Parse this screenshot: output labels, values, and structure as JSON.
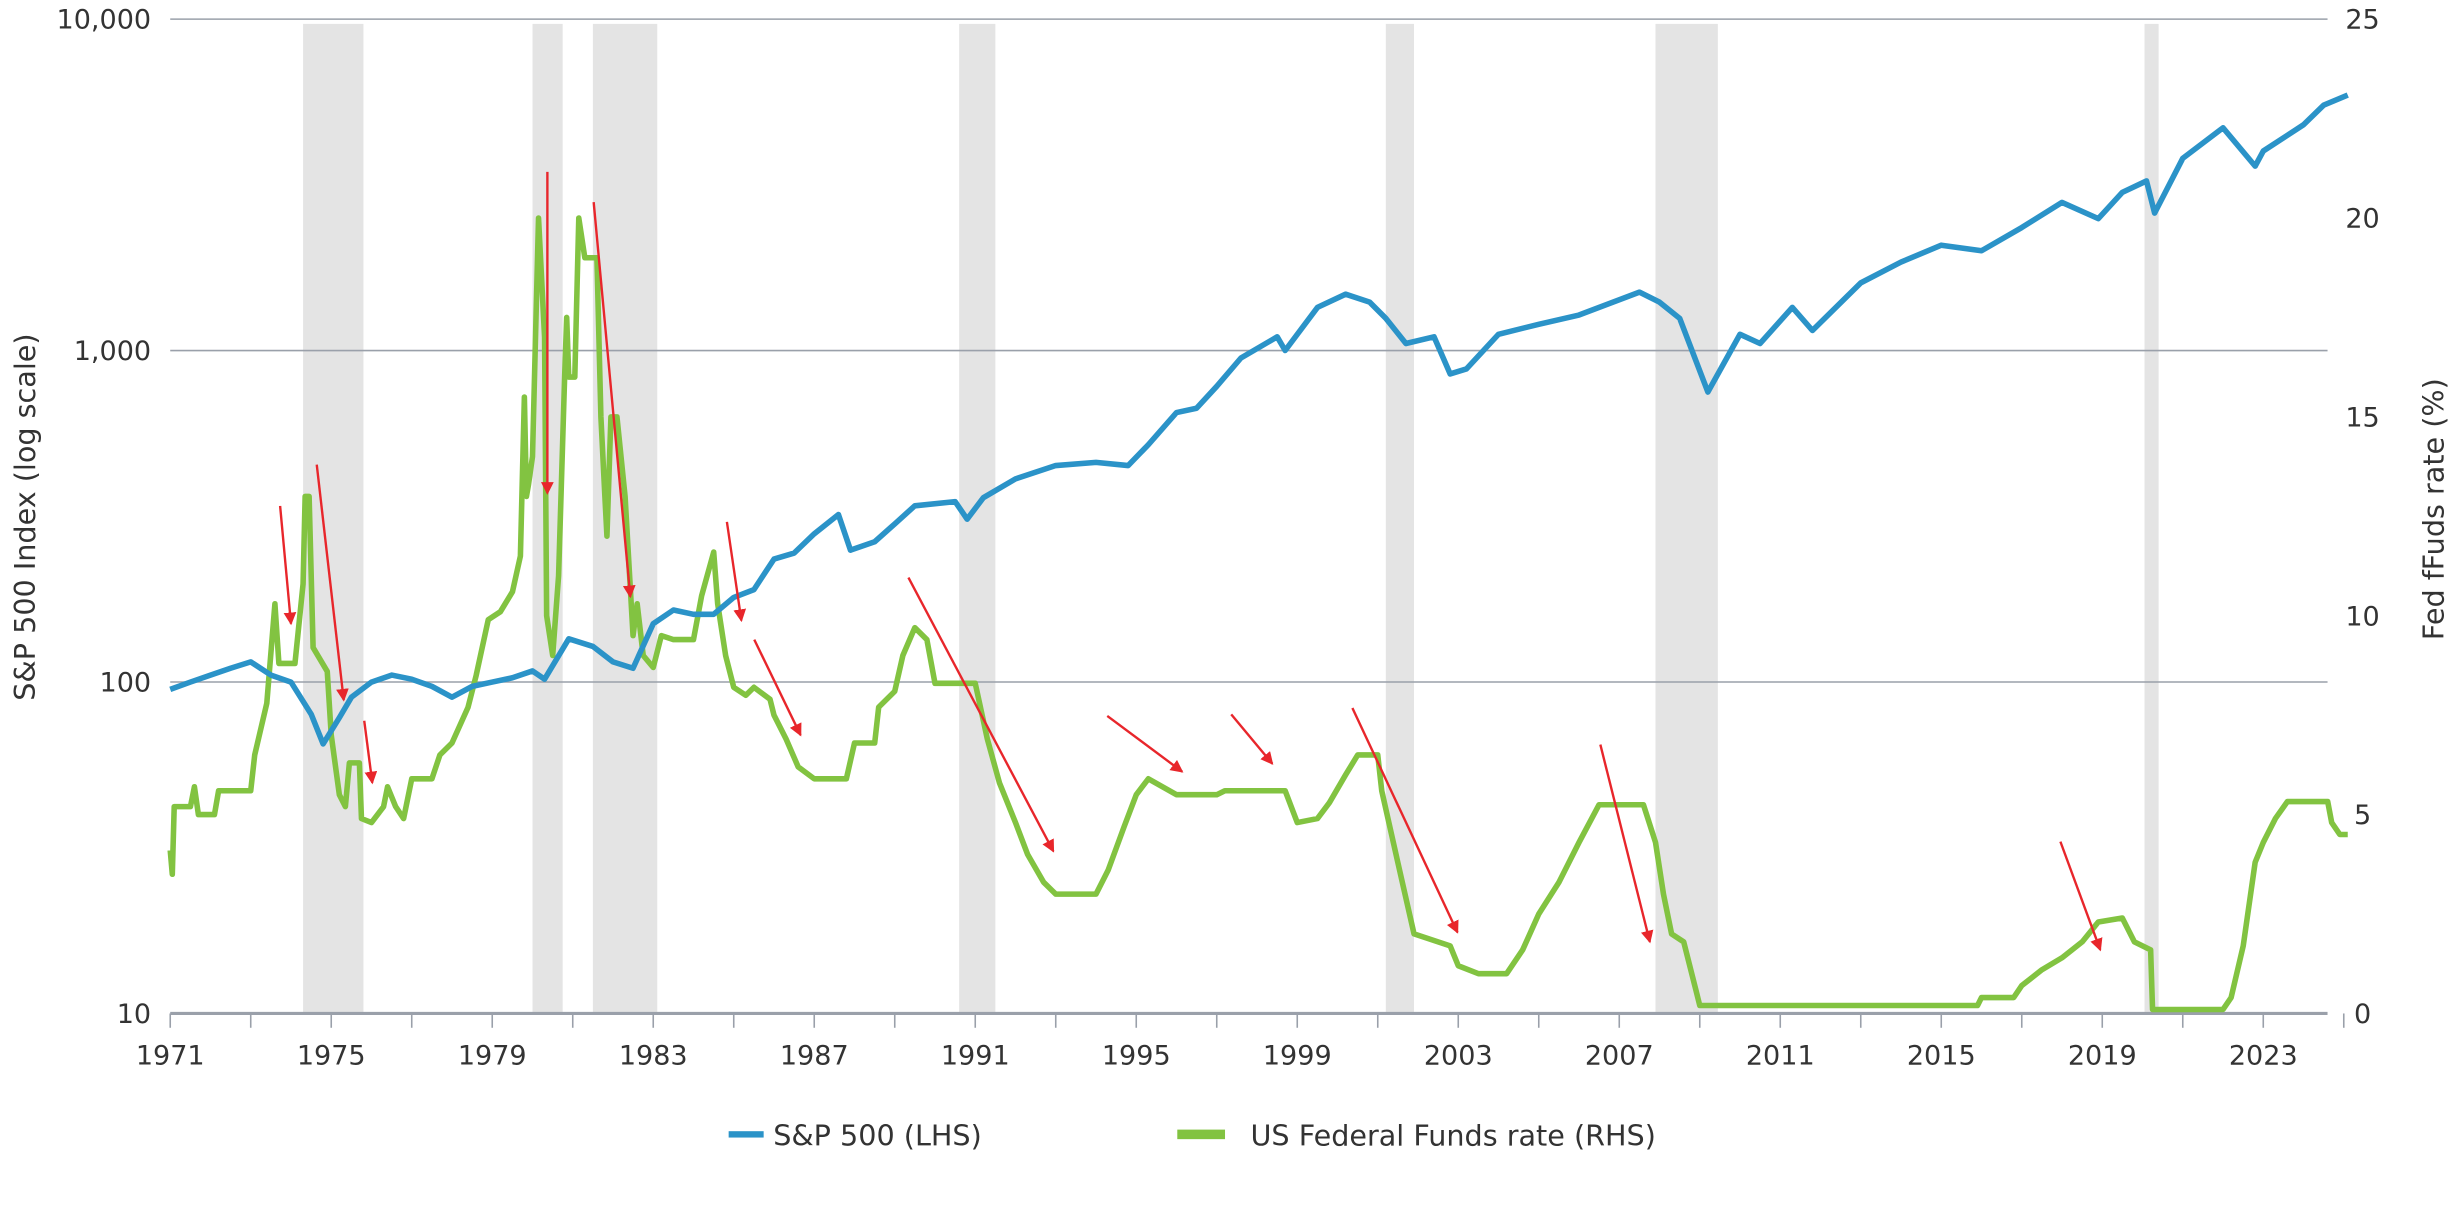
{
  "chart_data": {
    "type": "line",
    "title": "",
    "xlabel": "",
    "ylabel_left": "S&P 500 Index (log scale)",
    "ylabel_right": "Fed fFuds rate (%)",
    "x_range": [
      1971,
      2025.1
    ],
    "x_ticks": [
      "1971",
      "1975",
      "1979",
      "1983",
      "1987",
      "1991",
      "1995",
      "1999",
      "2003",
      "2007",
      "2011",
      "2015",
      "2019",
      "2023"
    ],
    "y_left": {
      "scale": "log",
      "range": [
        10,
        10000
      ],
      "ticks": [
        "10",
        "100",
        "1,000",
        "10,000"
      ],
      "tick_values": [
        10,
        100,
        1000,
        10000
      ]
    },
    "y_right": {
      "range": [
        0,
        25
      ],
      "ticks": [
        "0",
        "5",
        "10",
        "15",
        "20",
        "25"
      ],
      "tick_values": [
        0,
        5,
        10,
        15,
        20,
        25
      ]
    },
    "grid": "horizontal",
    "legend_position": "bottom",
    "colors": {
      "sp500": "#2b93c8",
      "fedfunds": "#82c341",
      "recession": "#e4e4e4",
      "arrow": "#e8262b",
      "grid": "#9aa0aa"
    },
    "series": [
      {
        "name": "S&P 500 (LHS)",
        "axis": "left",
        "points": [
          [
            1971,
            95
          ],
          [
            1971.5,
            100
          ],
          [
            1972,
            105
          ],
          [
            1972.5,
            110
          ],
          [
            1973,
            115
          ],
          [
            1973.5,
            105
          ],
          [
            1974,
            100
          ],
          [
            1974.5,
            80
          ],
          [
            1974.8,
            65
          ],
          [
            1975.2,
            78
          ],
          [
            1975.5,
            90
          ],
          [
            1976,
            100
          ],
          [
            1976.5,
            105
          ],
          [
            1977,
            102
          ],
          [
            1977.5,
            97
          ],
          [
            1978,
            90
          ],
          [
            1978.5,
            97
          ],
          [
            1979,
            100
          ],
          [
            1979.5,
            103
          ],
          [
            1980,
            108
          ],
          [
            1980.3,
            102
          ],
          [
            1980.9,
            135
          ],
          [
            1981.5,
            128
          ],
          [
            1982,
            115
          ],
          [
            1982.5,
            110
          ],
          [
            1983,
            150
          ],
          [
            1983.5,
            165
          ],
          [
            1984,
            160
          ],
          [
            1984.5,
            160
          ],
          [
            1985,
            180
          ],
          [
            1985.5,
            190
          ],
          [
            1986,
            235
          ],
          [
            1986.5,
            245
          ],
          [
            1987,
            280
          ],
          [
            1987.6,
            320
          ],
          [
            1987.9,
            250
          ],
          [
            1988.5,
            265
          ],
          [
            1989,
            300
          ],
          [
            1989.5,
            340
          ],
          [
            1990.5,
            350
          ],
          [
            1990.8,
            310
          ],
          [
            1991.2,
            360
          ],
          [
            1992,
            410
          ],
          [
            1993,
            450
          ],
          [
            1994,
            460
          ],
          [
            1994.8,
            450
          ],
          [
            1995.3,
            520
          ],
          [
            1996,
            650
          ],
          [
            1996.5,
            670
          ],
          [
            1997,
            780
          ],
          [
            1997.6,
            950
          ],
          [
            1998.5,
            1100
          ],
          [
            1998.7,
            1000
          ],
          [
            1999.5,
            1350
          ],
          [
            2000.2,
            1480
          ],
          [
            2000.8,
            1400
          ],
          [
            2001.2,
            1250
          ],
          [
            2001.7,
            1050
          ],
          [
            2002.4,
            1100
          ],
          [
            2002.8,
            850
          ],
          [
            2003.2,
            880
          ],
          [
            2004,
            1120
          ],
          [
            2005,
            1200
          ],
          [
            2006,
            1280
          ],
          [
            2007.5,
            1500
          ],
          [
            2008,
            1400
          ],
          [
            2008.5,
            1250
          ],
          [
            2009.2,
            750
          ],
          [
            2010,
            1120
          ],
          [
            2010.5,
            1050
          ],
          [
            2011.3,
            1350
          ],
          [
            2011.8,
            1150
          ],
          [
            2013,
            1600
          ],
          [
            2014,
            1850
          ],
          [
            2015,
            2080
          ],
          [
            2016,
            2000
          ],
          [
            2017,
            2350
          ],
          [
            2018,
            2800
          ],
          [
            2018.9,
            2500
          ],
          [
            2019.5,
            3000
          ],
          [
            2020.1,
            3250
          ],
          [
            2020.3,
            2600
          ],
          [
            2021,
            3800
          ],
          [
            2022,
            4700
          ],
          [
            2022.8,
            3600
          ],
          [
            2023,
            4000
          ],
          [
            2024,
            4800
          ],
          [
            2024.5,
            5500
          ],
          [
            2025.1,
            5900
          ]
        ]
      },
      {
        "name": "US Federal Funds rate (RHS)",
        "axis": "right",
        "points": [
          [
            1971,
            4.1
          ],
          [
            1971.05,
            3.5
          ],
          [
            1971.1,
            5.2
          ],
          [
            1971.5,
            5.2
          ],
          [
            1971.6,
            5.7
          ],
          [
            1971.7,
            5
          ],
          [
            1972.1,
            5
          ],
          [
            1972.2,
            5.6
          ],
          [
            1973,
            5.6
          ],
          [
            1973.1,
            6.5
          ],
          [
            1973.4,
            7.8
          ],
          [
            1973.6,
            10.3
          ],
          [
            1973.7,
            8.8
          ],
          [
            1974.1,
            8.8
          ],
          [
            1974.3,
            10.8
          ],
          [
            1974.35,
            13
          ],
          [
            1974.45,
            13
          ],
          [
            1974.55,
            9.2
          ],
          [
            1974.9,
            8.6
          ],
          [
            1975,
            7
          ],
          [
            1975.2,
            5.5
          ],
          [
            1975.35,
            5.2
          ],
          [
            1975.45,
            6.3
          ],
          [
            1975.7,
            6.3
          ],
          [
            1975.75,
            4.9
          ],
          [
            1976,
            4.8
          ],
          [
            1976.3,
            5.2
          ],
          [
            1976.4,
            5.7
          ],
          [
            1976.6,
            5.2
          ],
          [
            1976.8,
            4.9
          ],
          [
            1977,
            5.9
          ],
          [
            1977.5,
            5.9
          ],
          [
            1977.7,
            6.5
          ],
          [
            1978,
            6.8
          ],
          [
            1978.4,
            7.7
          ],
          [
            1978.6,
            8.5
          ],
          [
            1978.9,
            9.9
          ],
          [
            1979.2,
            10.1
          ],
          [
            1979.5,
            10.6
          ],
          [
            1979.7,
            11.5
          ],
          [
            1979.8,
            15.5
          ],
          [
            1979.85,
            13
          ],
          [
            1979.9,
            13.3
          ],
          [
            1980,
            14
          ],
          [
            1980.15,
            20
          ],
          [
            1980.3,
            17
          ],
          [
            1980.35,
            10
          ],
          [
            1980.5,
            9
          ],
          [
            1980.65,
            11
          ],
          [
            1980.8,
            16
          ],
          [
            1980.85,
            17.5
          ],
          [
            1980.9,
            16
          ],
          [
            1981.05,
            16
          ],
          [
            1981.15,
            20
          ],
          [
            1981.3,
            19
          ],
          [
            1981.6,
            19
          ],
          [
            1981.7,
            15
          ],
          [
            1981.8,
            13
          ],
          [
            1981.85,
            12
          ],
          [
            1981.95,
            15
          ],
          [
            1982.1,
            15
          ],
          [
            1982.3,
            13
          ],
          [
            1982.5,
            9.5
          ],
          [
            1982.6,
            10.3
          ],
          [
            1982.75,
            9
          ],
          [
            1983,
            8.7
          ],
          [
            1983.2,
            9.5
          ],
          [
            1983.5,
            9.4
          ],
          [
            1984,
            9.4
          ],
          [
            1984.2,
            10.5
          ],
          [
            1984.5,
            11.6
          ],
          [
            1984.6,
            10.3
          ],
          [
            1984.8,
            9
          ],
          [
            1985,
            8.2
          ],
          [
            1985.3,
            8
          ],
          [
            1985.5,
            8.2
          ],
          [
            1985.9,
            7.9
          ],
          [
            1986,
            7.5
          ],
          [
            1986.3,
            6.9
          ],
          [
            1986.6,
            6.2
          ],
          [
            1987,
            5.9
          ],
          [
            1987.8,
            5.9
          ],
          [
            1988,
            6.8
          ],
          [
            1988.5,
            6.8
          ],
          [
            1988.6,
            7.7
          ],
          [
            1989,
            8.1
          ],
          [
            1989.2,
            9
          ],
          [
            1989.5,
            9.7
          ],
          [
            1989.8,
            9.4
          ],
          [
            1990,
            8.3
          ],
          [
            1991,
            8.3
          ],
          [
            1991.3,
            6.9
          ],
          [
            1991.6,
            5.8
          ],
          [
            1992,
            4.8
          ],
          [
            1992.3,
            4
          ],
          [
            1992.7,
            3.3
          ],
          [
            1993,
            3
          ],
          [
            1994,
            3
          ],
          [
            1994.3,
            3.6
          ],
          [
            1994.7,
            4.7
          ],
          [
            1995,
            5.5
          ],
          [
            1995.3,
            5.9
          ],
          [
            1996,
            5.5
          ],
          [
            1997,
            5.5
          ],
          [
            1997.2,
            5.6
          ],
          [
            1998.7,
            5.6
          ],
          [
            1999,
            4.8
          ],
          [
            1999.5,
            4.9
          ],
          [
            1999.8,
            5.3
          ],
          [
            2000.2,
            6
          ],
          [
            2000.5,
            6.5
          ],
          [
            2001,
            6.5
          ],
          [
            2001.1,
            5.6
          ],
          [
            2001.5,
            3.8
          ],
          [
            2001.9,
            2
          ],
          [
            2002.8,
            1.7
          ],
          [
            2003,
            1.2
          ],
          [
            2003.5,
            1
          ],
          [
            2004.2,
            1
          ],
          [
            2004.6,
            1.6
          ],
          [
            2005,
            2.5
          ],
          [
            2005.5,
            3.3
          ],
          [
            2006,
            4.3
          ],
          [
            2006.5,
            5.25
          ],
          [
            2007.6,
            5.25
          ],
          [
            2007.9,
            4.3
          ],
          [
            2008.1,
            3
          ],
          [
            2008.3,
            2
          ],
          [
            2008.6,
            1.8
          ],
          [
            2008.9,
            0.6
          ],
          [
            2009,
            0.2
          ],
          [
            2015.9,
            0.2
          ],
          [
            2016,
            0.4
          ],
          [
            2016.8,
            0.4
          ],
          [
            2017,
            0.7
          ],
          [
            2017.5,
            1.1
          ],
          [
            2018,
            1.4
          ],
          [
            2018.5,
            1.8
          ],
          [
            2018.9,
            2.3
          ],
          [
            2019.5,
            2.4
          ],
          [
            2019.8,
            1.8
          ],
          [
            2020.2,
            1.6
          ],
          [
            2020.25,
            0.1
          ],
          [
            2022,
            0.1
          ],
          [
            2022.2,
            0.4
          ],
          [
            2022.5,
            1.7
          ],
          [
            2022.8,
            3.8
          ],
          [
            2023,
            4.3
          ],
          [
            2023.3,
            4.9
          ],
          [
            2023.6,
            5.33
          ],
          [
            2024.6,
            5.33
          ],
          [
            2024.7,
            4.8
          ],
          [
            2024.9,
            4.5
          ],
          [
            2025.1,
            4.5
          ]
        ]
      }
    ],
    "recessions": [
      [
        1974.3,
        1975.8
      ],
      [
        1980.0,
        1980.75
      ],
      [
        1981.5,
        1983.1
      ],
      [
        1990.6,
        1991.5
      ],
      [
        2001.2,
        2001.9
      ],
      [
        2007.9,
        2009.45
      ],
      [
        2020.05,
        2020.4
      ]
    ],
    "annotations": {
      "type": "arrows",
      "units": "[year, rate %] to [year, rate %]",
      "arrows": [
        [
          [
            1973.73,
            12.76
          ],
          [
            1974.0,
            9.8
          ]
        ],
        [
          [
            1974.64,
            13.8
          ],
          [
            1975.31,
            7.88
          ]
        ],
        [
          [
            1975.82,
            7.36
          ],
          [
            1976.02,
            5.8
          ]
        ],
        [
          [
            1980.37,
            21.16
          ],
          [
            1980.37,
            13.08
          ]
        ],
        [
          [
            1981.52,
            20.4
          ],
          [
            1982.43,
            10.48
          ]
        ],
        [
          [
            1984.83,
            12.36
          ],
          [
            1985.19,
            9.88
          ]
        ],
        [
          [
            1985.51,
            9.4
          ],
          [
            1986.66,
            7.0
          ]
        ],
        [
          [
            1989.34,
            10.96
          ],
          [
            1992.94,
            4.08
          ]
        ],
        [
          [
            1994.28,
            7.48
          ],
          [
            1996.14,
            6.08
          ]
        ],
        [
          [
            1997.36,
            7.52
          ],
          [
            1998.38,
            6.28
          ]
        ],
        [
          [
            2000.37,
            7.68
          ],
          [
            2002.98,
            2.04
          ]
        ],
        [
          [
            2006.53,
            6.76
          ],
          [
            2007.76,
            1.8
          ]
        ],
        [
          [
            2017.96,
            4.32
          ],
          [
            2018.95,
            1.6
          ]
        ]
      ]
    }
  }
}
